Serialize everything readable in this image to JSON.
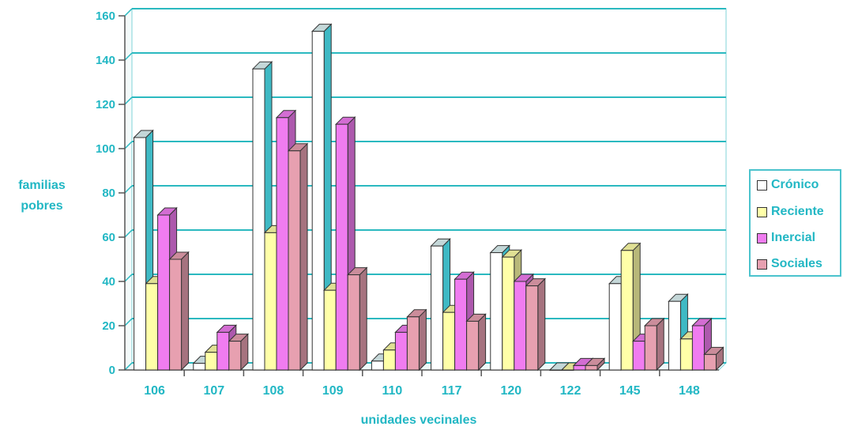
{
  "chart_data": {
    "type": "bar",
    "ylabel_lines": [
      "familias",
      "pobres"
    ],
    "xlabel": "unidades vecinales",
    "categories": [
      "106",
      "107",
      "108",
      "109",
      "110",
      "117",
      "120",
      "122",
      "145",
      "148"
    ],
    "ylim": [
      0,
      160
    ],
    "yticks": [
      0,
      20,
      40,
      60,
      80,
      100,
      120,
      140,
      160
    ],
    "grid": true,
    "legend_position": "right",
    "series": [
      {
        "name": "Crónico",
        "color": "#ffffff",
        "values": [
          105,
          3,
          136,
          153,
          4,
          56,
          53,
          0,
          39,
          31
        ]
      },
      {
        "name": "Reciente",
        "color": "#ffffa8",
        "values": [
          39,
          8,
          62,
          36,
          9,
          26,
          51,
          0,
          54,
          14
        ]
      },
      {
        "name": "Inercial",
        "color": "#f07cf0",
        "values": [
          70,
          17,
          114,
          111,
          17,
          41,
          40,
          2,
          13,
          20
        ]
      },
      {
        "name": "Sociales",
        "color": "#e7a0b0",
        "values": [
          50,
          13,
          99,
          43,
          24,
          22,
          38,
          2,
          20,
          7
        ]
      }
    ],
    "colors": {
      "grid": "#2bb9c0",
      "axis_text": "#22b7c4",
      "wall": "#ffffff"
    }
  }
}
